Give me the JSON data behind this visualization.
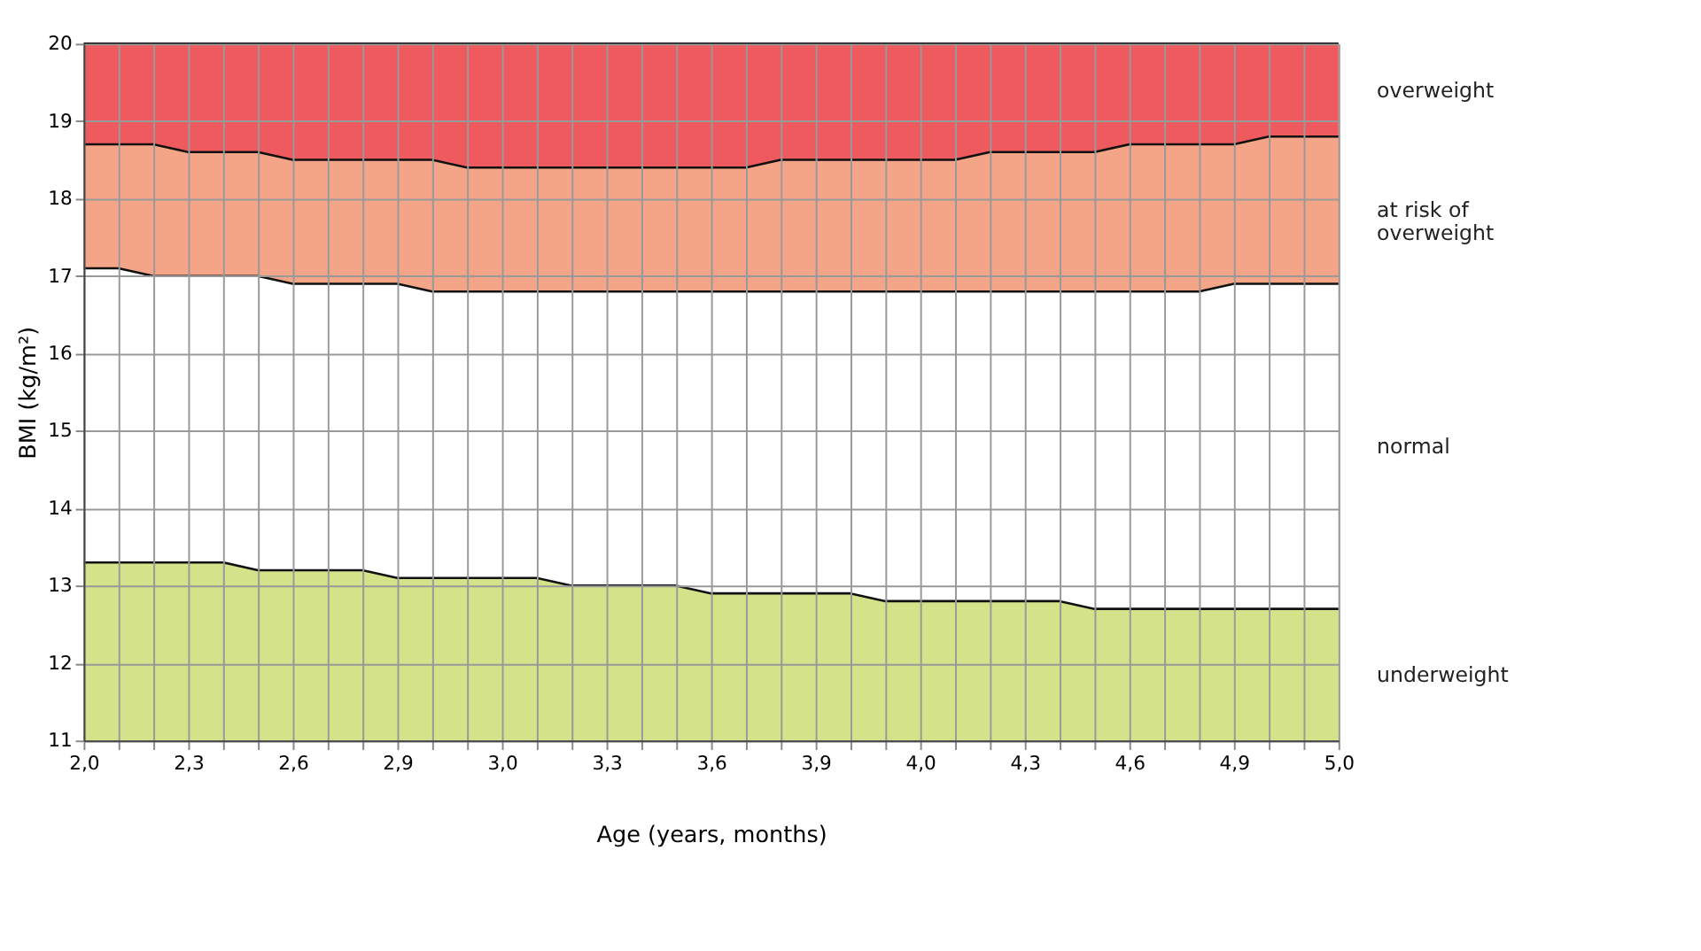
{
  "chart_data": {
    "type": "area",
    "xlabel": "Age (years, months)",
    "ylabel": "BMI (kg/m²)",
    "categories": [
      "2,0",
      null,
      null,
      "2,3",
      null,
      null,
      "2,6",
      null,
      null,
      "2,9",
      null,
      null,
      "3,0",
      null,
      null,
      "3,3",
      null,
      null,
      "3,6",
      null,
      null,
      "3,9",
      null,
      null,
      "4,0",
      null,
      null,
      "4,3",
      null,
      null,
      "4,6",
      null,
      null,
      "4,9",
      null,
      null,
      "5,0"
    ],
    "series": [
      {
        "name": "overweight",
        "color": "#ee5a5d",
        "values": [
          20,
          20,
          20,
          20,
          20,
          20,
          20,
          20,
          20,
          20,
          20,
          20,
          20,
          20,
          20,
          20,
          20,
          20,
          20,
          20,
          20,
          20,
          20,
          20,
          20,
          20,
          20,
          20,
          20,
          20,
          20,
          20,
          20,
          20,
          20,
          20,
          20
        ]
      },
      {
        "name": "at risk of overweight",
        "color": "#f4a487",
        "values": [
          18.7,
          18.7,
          18.7,
          18.6,
          18.6,
          18.6,
          18.5,
          18.5,
          18.5,
          18.5,
          18.5,
          18.4,
          18.4,
          18.4,
          18.4,
          18.4,
          18.4,
          18.4,
          18.4,
          18.4,
          18.5,
          18.5,
          18.5,
          18.5,
          18.5,
          18.5,
          18.6,
          18.6,
          18.6,
          18.6,
          18.7,
          18.7,
          18.7,
          18.7,
          18.8,
          18.8,
          18.8
        ]
      },
      {
        "name": "normal",
        "color": "#ffffff",
        "values": [
          17.1,
          17.1,
          17.0,
          17.0,
          17.0,
          17.0,
          16.9,
          16.9,
          16.9,
          16.9,
          16.8,
          16.8,
          16.8,
          16.8,
          16.8,
          16.8,
          16.8,
          16.8,
          16.8,
          16.8,
          16.8,
          16.8,
          16.8,
          16.8,
          16.8,
          16.8,
          16.8,
          16.8,
          16.8,
          16.8,
          16.8,
          16.8,
          16.8,
          16.9,
          16.9,
          16.9,
          16.9
        ]
      },
      {
        "name": "underweight",
        "color": "#d4e38a",
        "values": [
          13.3,
          13.3,
          13.3,
          13.3,
          13.3,
          13.2,
          13.2,
          13.2,
          13.2,
          13.1,
          13.1,
          13.1,
          13.1,
          13.1,
          13.0,
          13.0,
          13.0,
          13.0,
          12.9,
          12.9,
          12.9,
          12.9,
          12.9,
          12.8,
          12.8,
          12.8,
          12.8,
          12.8,
          12.8,
          12.7,
          12.7,
          12.7,
          12.7,
          12.7,
          12.7,
          12.7,
          12.7
        ]
      }
    ],
    "ylim": [
      11,
      20
    ],
    "yticks": [
      11,
      12,
      13,
      14,
      15,
      16,
      17,
      18,
      19,
      20
    ],
    "grid": true
  }
}
